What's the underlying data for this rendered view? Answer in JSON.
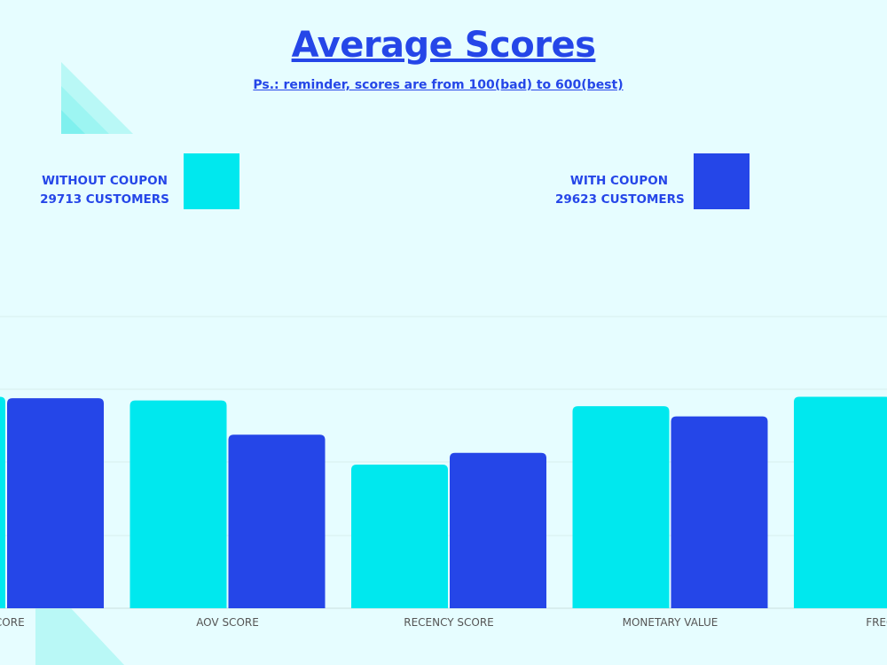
{
  "colors": {
    "background": "#e6fdff",
    "without_coupon": "#00e8ee",
    "with_coupon": "#2546e8",
    "text_accent": "#2546e8",
    "decoration": "#7ff3f2"
  },
  "title": "Average Scores",
  "subtitle": "Ps.: reminder, scores are from 100(bad) to 600(best)",
  "legend": [
    {
      "line1": "WITHOUT  COUPON",
      "line2": "29713 CUSTOMERS"
    },
    {
      "line1": "WITH COUPON",
      "line2": "29623 CUSTOMERS"
    }
  ],
  "chart_data": {
    "type": "bar",
    "categories": [
      "SCORE",
      "AOV SCORE",
      "RECENCY SCORE",
      "MONETARY VALUE",
      "FREQUEN"
    ],
    "series": [
      {
        "name": "WITHOUT COUPON",
        "values": [
          590,
          585,
          497,
          577,
          590
        ]
      },
      {
        "name": "WITH COUPON",
        "values": [
          588,
          538,
          513,
          563,
          null
        ]
      }
    ],
    "grid": true,
    "legend_position": "top"
  }
}
